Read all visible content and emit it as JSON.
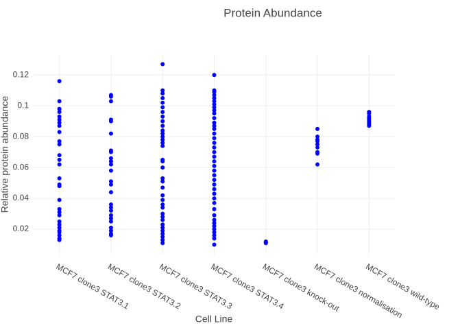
{
  "chart_data": {
    "type": "scatter",
    "title": "Protein Abundance",
    "x_label": "Cell Line",
    "y_label": "Relative protein abundance",
    "categories": [
      "MCF7 clone3 STAT3.1",
      "MCF7 clone3 STAT3.2",
      "MCF7 clone3 STAT3.3",
      "MCF7 clone3 STAT3.4",
      "MCF7 clone3 knock-out",
      "MCF7 clone3 normalisation",
      "MCF7 clone3 wild-type"
    ],
    "values": [
      [
        0.116,
        0.103,
        0.098,
        0.096,
        0.093,
        0.091,
        0.089,
        0.087,
        0.083,
        0.077,
        0.075,
        0.068,
        0.065,
        0.062,
        0.053,
        0.049,
        0.048,
        0.039,
        0.033,
        0.031,
        0.029,
        0.025,
        0.023,
        0.021,
        0.019,
        0.018,
        0.016,
        0.014,
        0.013
      ],
      [
        0.107,
        0.106,
        0.103,
        0.091,
        0.09,
        0.082,
        0.071,
        0.07,
        0.066,
        0.064,
        0.062,
        0.058,
        0.051,
        0.049,
        0.044,
        0.036,
        0.034,
        0.032,
        0.029,
        0.027,
        0.025,
        0.021,
        0.019,
        0.017,
        0.016
      ],
      [
        0.127,
        0.11,
        0.108,
        0.105,
        0.102,
        0.099,
        0.096,
        0.093,
        0.09,
        0.087,
        0.084,
        0.082,
        0.08,
        0.078,
        0.076,
        0.074,
        0.065,
        0.064,
        0.06,
        0.053,
        0.051,
        0.047,
        0.042,
        0.039,
        0.036,
        0.034,
        0.03,
        0.028,
        0.026,
        0.023,
        0.021,
        0.019,
        0.017,
        0.015,
        0.013,
        0.011
      ],
      [
        0.12,
        0.11,
        0.109,
        0.107,
        0.105,
        0.103,
        0.101,
        0.099,
        0.097,
        0.095,
        0.092,
        0.089,
        0.087,
        0.085,
        0.082,
        0.079,
        0.076,
        0.073,
        0.07,
        0.067,
        0.064,
        0.061,
        0.058,
        0.055,
        0.052,
        0.049,
        0.046,
        0.043,
        0.04,
        0.037,
        0.033,
        0.029,
        0.026,
        0.024,
        0.022,
        0.02,
        0.018,
        0.016,
        0.014,
        0.01
      ],
      [
        0.012,
        0.0115,
        0.011
      ],
      [
        0.085,
        0.08,
        0.078,
        0.077,
        0.075,
        0.073,
        0.07,
        0.069,
        0.062
      ],
      [
        0.096,
        0.095,
        0.093,
        0.092,
        0.091,
        0.09,
        0.089,
        0.088,
        0.087
      ]
    ],
    "color": "#0000ff",
    "ylim": [
      0.004,
      0.133
    ],
    "yticks": [
      0.02,
      0.04,
      0.06,
      0.08,
      0.1,
      0.12
    ],
    "grid": true
  }
}
